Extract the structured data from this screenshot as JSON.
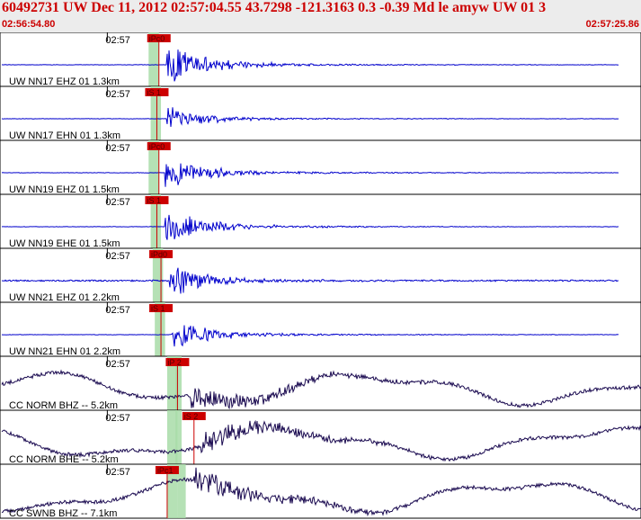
{
  "header": {
    "title": "60492731 UW Dec 11, 2012 02:57:04.55    43.7298  -121.3163   0.3  -0.39  Md  le  amyw  UW 01    3",
    "start_time": "02:56:54.80",
    "end_time": "02:57:25.86"
  },
  "colors": {
    "trace_sp": "#0000cc",
    "trace_bb": "#1a0a50",
    "pick": "#cc0000",
    "window": "#a8dca8"
  },
  "chart_data": {
    "type": "line",
    "title": "",
    "time_range": [
      "02:56:54.80",
      "02:57:25.86"
    ],
    "time_tick_label": "02:57",
    "channels": [
      {
        "label": "UW NN17 EHZ 01 1.3km",
        "pick": "iPc0",
        "pick_time": 7.7,
        "onset": 8.1,
        "amp": 22,
        "style": "sp",
        "window": [
          7.2,
          7.7
        ]
      },
      {
        "label": "UW NN17 EHN 01 1.3km",
        "pick": "iS 1",
        "pick_time": 7.6,
        "onset": 8.1,
        "amp": 14,
        "style": "sp",
        "window": [
          7.3,
          7.8
        ]
      },
      {
        "label": "UW NN19 EHZ 01 1.5km",
        "pick": "iPc0",
        "pick_time": 7.7,
        "onset": 8.0,
        "amp": 20,
        "style": "sp",
        "window": [
          7.2,
          7.7
        ]
      },
      {
        "label": "UW NN19 EHE 01 1.5km",
        "pick": "iS 1",
        "pick_time": 7.6,
        "onset": 8.0,
        "amp": 20,
        "style": "sp",
        "window": [
          7.3,
          7.8
        ]
      },
      {
        "label": "UW NN21 EHZ 01 2.2km",
        "pick": "iPd0",
        "pick_time": 7.8,
        "onset": 8.2,
        "amp": 18,
        "style": "sp",
        "window": [
          7.4,
          7.9
        ]
      },
      {
        "label": "UW NN21 EHN 01 2.2km",
        "pick": "iS 1",
        "pick_time": 7.8,
        "onset": 8.3,
        "amp": 18,
        "style": "sp",
        "window": [
          7.5,
          8.0
        ]
      },
      {
        "label": "CC NORM BHZ -- 5.2km",
        "pick": "iP 2",
        "pick_time": 8.6,
        "onset": 9.2,
        "amp": 14,
        "style": "bb",
        "window": [
          8.1,
          8.6
        ],
        "window2": [
          8.5,
          8.8
        ]
      },
      {
        "label": "CC NORM BHE -- 5.2km",
        "pick": "iS 2",
        "pick_time": 9.4,
        "onset": 9.7,
        "amp": 14,
        "style": "bb",
        "window": [
          8.1,
          8.6
        ],
        "window2": [
          8.5,
          8.8
        ]
      },
      {
        "label": "CC SWNB BHZ -- 7.1km",
        "pick": "iPc1",
        "pick_time": 8.1,
        "onset": 9.4,
        "amp": 14,
        "style": "bb",
        "window": [
          8.1,
          8.6
        ],
        "window2": [
          8.6,
          9.0
        ]
      }
    ]
  }
}
